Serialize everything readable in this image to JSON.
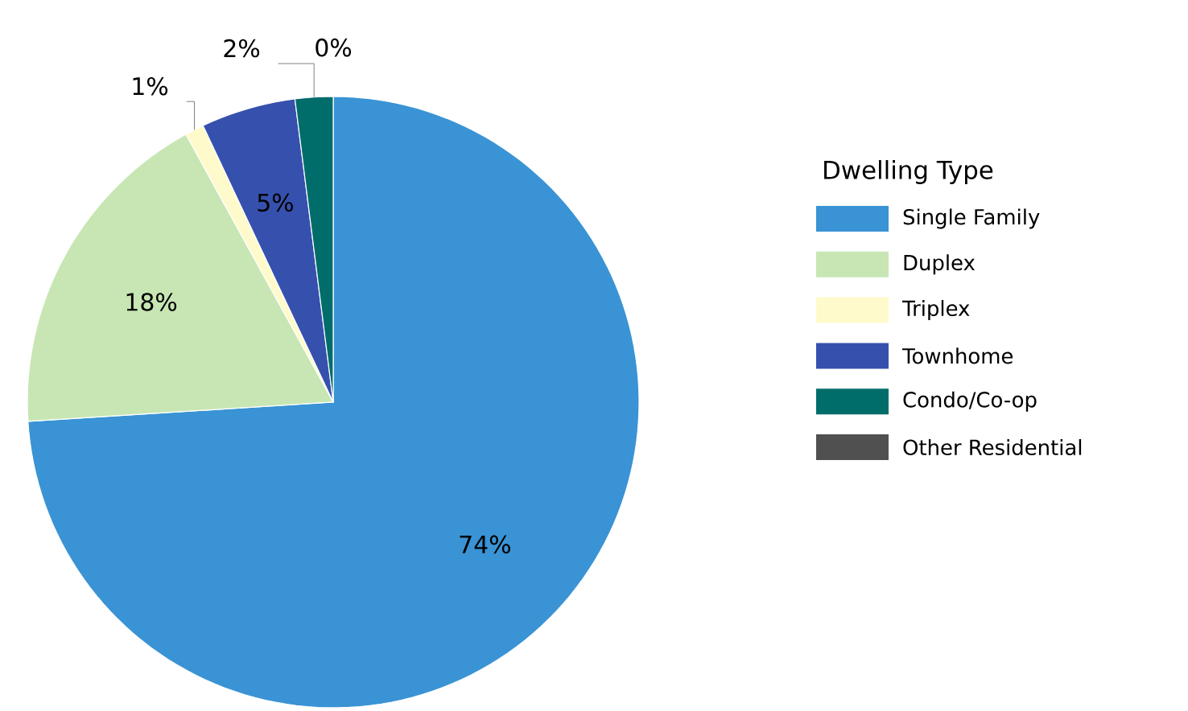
{
  "chart_data": {
    "type": "pie",
    "legend_title": "Dwelling Type",
    "categories": [
      "Single Family",
      "Duplex",
      "Triplex",
      "Townhome",
      "Condo/Co-op",
      "Other Residential"
    ],
    "values": [
      74,
      18,
      1,
      5,
      2,
      0
    ],
    "value_labels": [
      "74%",
      "18%",
      "1%",
      "5%",
      "2%",
      "0%"
    ],
    "colors": [
      "#3a93d4",
      "#c7e6b4",
      "#fffacb",
      "#3651ad",
      "#006d6b",
      "#505050"
    ],
    "legend": "right"
  }
}
